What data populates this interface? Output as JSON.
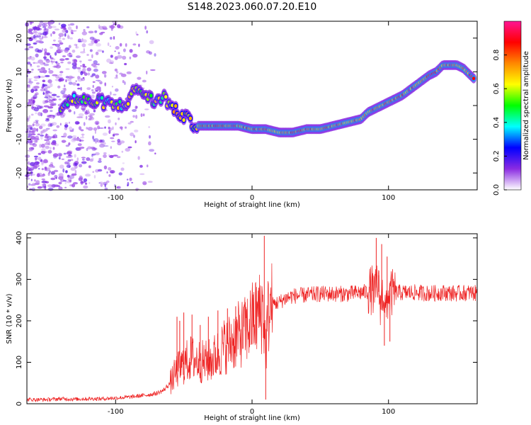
{
  "title": "S148.2023.060.07.20.E10",
  "colors": {
    "snr_line": "#ee2222",
    "axis": "#000000"
  },
  "colormap": [
    "#ffffff",
    "#8a2be2",
    "#0000ff",
    "#00ffff",
    "#00ff00",
    "#ffff00",
    "#ff8800",
    "#ff0000",
    "#ff1493"
  ],
  "chart_data": [
    {
      "type": "heatmap",
      "title": "S148.2023.060.07.20.E10",
      "xlabel": "Height of straight line (km)",
      "ylabel": "Frequency (Hz)",
      "xlim": [
        -165,
        165
      ],
      "ylim": [
        -25,
        25
      ],
      "xticks": [
        -100,
        0,
        100
      ],
      "yticks": [
        -20,
        -10,
        0,
        10,
        20
      ],
      "colorbar": {
        "label": "Normalized spectral amplitude",
        "range": [
          0,
          1
        ],
        "ticks": [
          0.0,
          0.2,
          0.4,
          0.6,
          0.8
        ]
      },
      "ridge": {
        "x": [
          -140,
          -130,
          -120,
          -110,
          -100,
          -95,
          -90,
          -85,
          -80,
          -75,
          -70,
          -65,
          -60,
          -55,
          -50,
          -45,
          -40,
          -30,
          -20,
          -10,
          0,
          10,
          20,
          30,
          40,
          50,
          60,
          70,
          80,
          85,
          90,
          95,
          100,
          110,
          120,
          130,
          135,
          140,
          145,
          150,
          155,
          160,
          165
        ],
        "y": [
          0,
          2,
          1,
          1,
          0,
          0,
          2,
          5,
          4,
          2,
          1,
          3,
          0,
          -2,
          -3,
          -5,
          -6,
          -6,
          -6,
          -6,
          -7,
          -7,
          -8,
          -8,
          -7,
          -7,
          -6,
          -5,
          -4,
          -2,
          -1,
          0,
          1,
          3,
          6,
          9,
          10,
          12,
          12,
          12,
          11,
          9,
          7
        ]
      }
    },
    {
      "type": "line",
      "xlabel": "Height of straight line (km)",
      "ylabel": "SNR (10 * v/v)",
      "xlim": [
        -165,
        165
      ],
      "ylim": [
        0,
        410
      ],
      "xticks": [
        -100,
        0,
        100
      ],
      "yticks": [
        0,
        100,
        200,
        300,
        400
      ],
      "series": [
        {
          "name": "SNR",
          "x": [
            -165,
            -150,
            -140,
            -130,
            -120,
            -110,
            -100,
            -90,
            -80,
            -75,
            -70,
            -65,
            -60,
            -55,
            -50,
            -45,
            -40,
            -35,
            -30,
            -25,
            -20,
            -15,
            -10,
            -5,
            0,
            5,
            8,
            10,
            12,
            15,
            20,
            25,
            30,
            40,
            50,
            60,
            70,
            80,
            85,
            88,
            90,
            92,
            94,
            96,
            98,
            100,
            105,
            110,
            120,
            130,
            140,
            150,
            160,
            165
          ],
          "y": [
            10,
            10,
            12,
            11,
            12,
            12,
            14,
            16,
            20,
            22,
            25,
            32,
            50,
            80,
            95,
            110,
            105,
            100,
            105,
            120,
            140,
            150,
            165,
            175,
            200,
            215,
            230,
            130,
            220,
            240,
            245,
            255,
            260,
            262,
            265,
            265,
            265,
            268,
            270,
            275,
            260,
            300,
            240,
            270,
            220,
            265,
            268,
            268,
            268,
            266,
            268,
            266,
            268,
            266
          ]
        }
      ],
      "spikes": [
        {
          "x": -55,
          "y": 210
        },
        {
          "x": -53,
          "y": 200
        },
        {
          "x": -50,
          "y": 220
        },
        {
          "x": -44,
          "y": 215
        },
        {
          "x": -38,
          "y": 190
        },
        {
          "x": -32,
          "y": 210
        },
        {
          "x": -25,
          "y": 225
        },
        {
          "x": -18,
          "y": 230
        },
        {
          "x": -12,
          "y": 235
        },
        {
          "x": -5,
          "y": 245
        },
        {
          "x": 5,
          "y": 280
        },
        {
          "x": 9,
          "y": 405
        },
        {
          "x": 10,
          "y": 10
        },
        {
          "x": 91,
          "y": 400
        },
        {
          "x": 93,
          "y": 310
        },
        {
          "x": 95,
          "y": 385
        },
        {
          "x": 97,
          "y": 140
        },
        {
          "x": 99,
          "y": 355
        },
        {
          "x": 101,
          "y": 150
        }
      ]
    }
  ]
}
